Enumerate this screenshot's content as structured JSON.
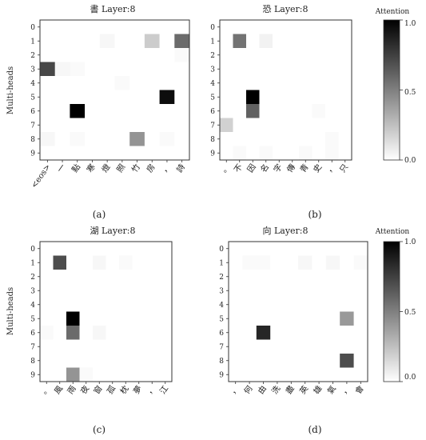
{
  "chart_data": [
    {
      "type": "heatmap",
      "title": "書 Layer:8",
      "panel_label": "(a)",
      "ylabel": "Multi-heads",
      "x_tick_labels": [
        "<eos>",
        "一",
        "點",
        "寒",
        "燈",
        "照",
        "竹",
        "房",
        "，",
        "詩"
      ],
      "y_tick_labels": [
        "0",
        "1",
        "2",
        "3",
        "4",
        "5",
        "6",
        "7",
        "8",
        "9"
      ],
      "values": [
        [
          0.0,
          0.0,
          0.0,
          0.0,
          0.0,
          0.0,
          0.0,
          0.0,
          0.0,
          0.0
        ],
        [
          0.0,
          0.0,
          0.0,
          0.0,
          0.03,
          0.0,
          0.0,
          0.2,
          0.0,
          0.58
        ],
        [
          0.0,
          0.0,
          0.0,
          0.0,
          0.0,
          0.0,
          0.0,
          0.0,
          0.0,
          0.02
        ],
        [
          0.72,
          0.03,
          0.02,
          0.0,
          0.0,
          0.0,
          0.0,
          0.0,
          0.0,
          0.0
        ],
        [
          0.0,
          0.0,
          0.0,
          0.0,
          0.0,
          0.02,
          0.0,
          0.0,
          0.0,
          0.0
        ],
        [
          0.0,
          0.0,
          0.0,
          0.0,
          0.0,
          0.0,
          0.0,
          0.0,
          0.95,
          0.0
        ],
        [
          0.0,
          0.0,
          1.0,
          0.0,
          0.0,
          0.0,
          0.0,
          0.0,
          0.0,
          0.0
        ],
        [
          0.0,
          0.0,
          0.0,
          0.0,
          0.0,
          0.0,
          0.0,
          0.0,
          0.0,
          0.0
        ],
        [
          0.03,
          0.0,
          0.02,
          0.0,
          0.0,
          0.0,
          0.42,
          0.0,
          0.02,
          0.0
        ],
        [
          0.0,
          0.0,
          0.0,
          0.0,
          0.0,
          0.0,
          0.0,
          0.0,
          0.0,
          0.0
        ]
      ]
    },
    {
      "type": "heatmap",
      "title": "恐 Layer:8",
      "panel_label": "(b)",
      "ylabel": "",
      "x_tick_labels": [
        "。",
        "不",
        "因",
        "名",
        "字",
        "傳",
        "青",
        "史",
        "，",
        "只"
      ],
      "y_tick_labels": [
        "0",
        "1",
        "2",
        "3",
        "4",
        "5",
        "6",
        "7",
        "8",
        "9"
      ],
      "values": [
        [
          0.0,
          0.0,
          0.0,
          0.0,
          0.0,
          0.0,
          0.0,
          0.0,
          0.0,
          0.0
        ],
        [
          0.0,
          0.55,
          0.0,
          0.05,
          0.0,
          0.0,
          0.0,
          0.0,
          0.0,
          0.0
        ],
        [
          0.0,
          0.0,
          0.0,
          0.0,
          0.0,
          0.0,
          0.0,
          0.0,
          0.0,
          0.0
        ],
        [
          0.0,
          0.0,
          0.0,
          0.0,
          0.0,
          0.0,
          0.0,
          0.0,
          0.0,
          0.0
        ],
        [
          0.0,
          0.0,
          0.0,
          0.0,
          0.0,
          0.0,
          0.0,
          0.0,
          0.0,
          0.0
        ],
        [
          0.0,
          0.0,
          1.0,
          0.0,
          0.0,
          0.0,
          0.0,
          0.0,
          0.0,
          0.0
        ],
        [
          0.0,
          0.0,
          0.62,
          0.0,
          0.0,
          0.0,
          0.0,
          0.02,
          0.0,
          0.0
        ],
        [
          0.18,
          0.0,
          0.0,
          0.0,
          0.0,
          0.0,
          0.0,
          0.0,
          0.0,
          0.0
        ],
        [
          0.0,
          0.0,
          0.0,
          0.0,
          0.0,
          0.0,
          0.0,
          0.0,
          0.02,
          0.0
        ],
        [
          0.0,
          0.02,
          0.0,
          0.02,
          0.0,
          0.0,
          0.02,
          0.0,
          0.02,
          0.0
        ]
      ]
    },
    {
      "type": "heatmap",
      "title": "湖 Layer:8",
      "panel_label": "(c)",
      "ylabel": "Multi-heads",
      "x_tick_labels": [
        "。",
        "風",
        "雨",
        "夜",
        "窗",
        "孤",
        "枕",
        "夢",
        "，",
        "江"
      ],
      "y_tick_labels": [
        "0",
        "1",
        "2",
        "3",
        "4",
        "5",
        "6",
        "7",
        "8",
        "9"
      ],
      "values": [
        [
          0.0,
          0.0,
          0.0,
          0.0,
          0.0,
          0.0,
          0.0,
          0.0,
          0.0,
          0.0
        ],
        [
          0.0,
          0.7,
          0.0,
          0.0,
          0.03,
          0.0,
          0.02,
          0.0,
          0.0,
          0.0
        ],
        [
          0.0,
          0.0,
          0.0,
          0.0,
          0.0,
          0.0,
          0.0,
          0.0,
          0.0,
          0.0
        ],
        [
          0.0,
          0.0,
          0.0,
          0.0,
          0.0,
          0.0,
          0.0,
          0.0,
          0.0,
          0.0
        ],
        [
          0.0,
          0.0,
          0.0,
          0.0,
          0.0,
          0.0,
          0.0,
          0.0,
          0.0,
          0.0
        ],
        [
          0.0,
          0.0,
          1.0,
          0.0,
          0.0,
          0.0,
          0.0,
          0.0,
          0.0,
          0.0
        ],
        [
          0.02,
          0.0,
          0.58,
          0.0,
          0.03,
          0.0,
          0.0,
          0.0,
          0.0,
          0.0
        ],
        [
          0.0,
          0.0,
          0.0,
          0.0,
          0.0,
          0.0,
          0.0,
          0.0,
          0.0,
          0.0
        ],
        [
          0.0,
          0.0,
          0.0,
          0.0,
          0.0,
          0.0,
          0.0,
          0.0,
          0.0,
          0.0
        ],
        [
          0.0,
          0.0,
          0.42,
          0.02,
          0.0,
          0.0,
          0.0,
          0.0,
          0.0,
          0.0
        ]
      ]
    },
    {
      "type": "heatmap",
      "title": "向 Layer:8",
      "panel_label": "(d)",
      "ylabel": "",
      "x_tick_labels": [
        "，",
        "何",
        "由",
        "洗",
        "盡",
        "英",
        "雄",
        "氣",
        "，",
        "會"
      ],
      "y_tick_labels": [
        "0",
        "1",
        "2",
        "3",
        "4",
        "5",
        "6",
        "7",
        "8",
        "9"
      ],
      "values": [
        [
          0.0,
          0.0,
          0.0,
          0.0,
          0.0,
          0.0,
          0.0,
          0.0,
          0.0,
          0.0
        ],
        [
          0.0,
          0.02,
          0.02,
          0.0,
          0.0,
          0.03,
          0.0,
          0.03,
          0.0,
          0.02
        ],
        [
          0.0,
          0.0,
          0.0,
          0.0,
          0.0,
          0.0,
          0.0,
          0.0,
          0.0,
          0.0
        ],
        [
          0.0,
          0.0,
          0.0,
          0.0,
          0.0,
          0.0,
          0.0,
          0.0,
          0.0,
          0.0
        ],
        [
          0.0,
          0.0,
          0.0,
          0.0,
          0.0,
          0.0,
          0.0,
          0.0,
          0.0,
          0.0
        ],
        [
          0.0,
          0.0,
          0.0,
          0.0,
          0.0,
          0.0,
          0.0,
          0.0,
          0.4,
          0.0
        ],
        [
          0.0,
          0.0,
          0.85,
          0.0,
          0.0,
          0.0,
          0.0,
          0.0,
          0.0,
          0.0
        ],
        [
          0.0,
          0.0,
          0.0,
          0.0,
          0.0,
          0.0,
          0.0,
          0.0,
          0.0,
          0.0
        ],
        [
          0.0,
          0.0,
          0.0,
          0.0,
          0.0,
          0.0,
          0.0,
          0.0,
          0.7,
          0.0
        ],
        [
          0.0,
          0.0,
          0.0,
          0.0,
          0.0,
          0.0,
          0.0,
          0.0,
          0.0,
          0.0
        ]
      ]
    }
  ],
  "colorbar": {
    "title": "Attention",
    "range": [
      0.0,
      1.0
    ],
    "ticks": [
      "1.0",
      "0.5",
      "0.0"
    ],
    "colormap": "white-to-black"
  }
}
